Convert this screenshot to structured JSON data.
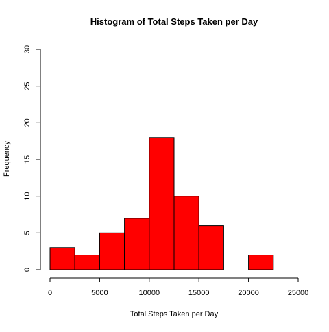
{
  "chart_data": {
    "type": "bar",
    "title": "Histogram of Total Steps Taken per Day",
    "xlabel": "Total Steps Taken per Day",
    "ylabel": "Frequency",
    "bin_edges": [
      0,
      2500,
      5000,
      7500,
      10000,
      12500,
      15000,
      17500,
      20000,
      22500,
      25000
    ],
    "values": [
      3,
      2,
      5,
      7,
      18,
      10,
      6,
      0,
      2,
      0
    ],
    "xlim": [
      0,
      25000
    ],
    "ylim": [
      0,
      30
    ],
    "x_ticks": [
      0,
      5000,
      10000,
      15000,
      20000,
      25000
    ],
    "y_ticks": [
      0,
      5,
      10,
      15,
      20,
      25,
      30
    ],
    "bar_color": "#ff0000",
    "bar_border_color": "#000000",
    "grid": false
  }
}
